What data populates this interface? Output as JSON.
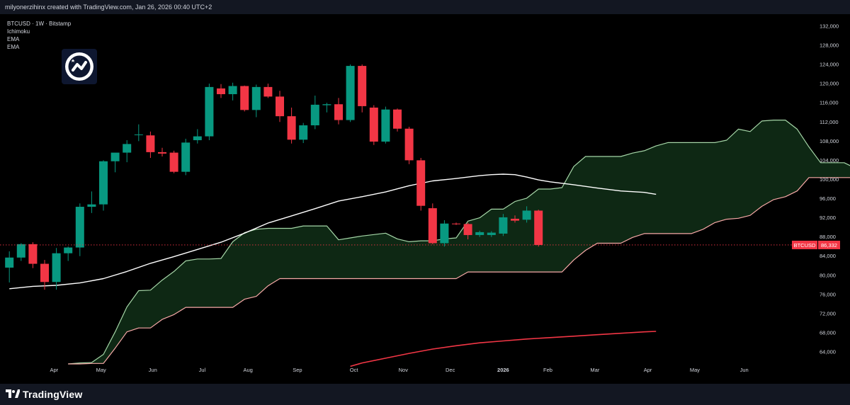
{
  "header": {
    "caption": "milyonerzihinx created with TradingView.com, Jan 26, 2026 00:40 UTC+2"
  },
  "legend": {
    "symbol": "BTCUSD · 1W · Bitstamp",
    "indicators": [
      "Ichimoku",
      "EMA",
      "EMA"
    ]
  },
  "footer": {
    "brand": "TradingView"
  },
  "colors": {
    "up": "#089981",
    "down": "#f23645",
    "cloud": "#0f2a15",
    "leading_a": "#a5d6a7",
    "leading_b": "#f7a9a7",
    "ema_fast": "#ffffff",
    "ema_slow": "#f23645",
    "background": "#000000"
  },
  "chart_data": {
    "type": "candlestick",
    "symbol": "BTCUSD",
    "timeframe": "1W",
    "exchange": "Bitstamp",
    "y_axis": {
      "ticks": [
        64000,
        68000,
        72000,
        76000,
        80000,
        84000,
        88000,
        92000,
        96000,
        100000,
        104000,
        108000,
        112000,
        116000,
        120000,
        124000,
        128000,
        132000
      ],
      "range": [
        61500,
        134500
      ]
    },
    "x_axis": {
      "labels": [
        "Apr",
        "May",
        "Jun",
        "Jul",
        "Aug",
        "Sep",
        "Oct",
        "Nov",
        "Dec",
        "2026",
        "Feb",
        "Mar",
        "Apr",
        "May",
        "Jun"
      ],
      "label_week_index": [
        3.8,
        7.8,
        12.2,
        16.4,
        20.3,
        24.5,
        29.3,
        33.5,
        37.5,
        42.0,
        45.8,
        49.8,
        54.3,
        58.3,
        62.5
      ]
    },
    "last_price": {
      "label": "BTCUSD",
      "value": "86,332"
    },
    "candles": [
      {
        "o": 81600,
        "h": 85000,
        "l": 78500,
        "c": 83700
      },
      {
        "o": 83700,
        "h": 86700,
        "l": 83000,
        "c": 86500
      },
      {
        "o": 86500,
        "h": 86900,
        "l": 81500,
        "c": 82400
      },
      {
        "o": 82400,
        "h": 83200,
        "l": 77000,
        "c": 78600
      },
      {
        "o": 78600,
        "h": 85700,
        "l": 77000,
        "c": 84600
      },
      {
        "o": 84600,
        "h": 86000,
        "l": 83000,
        "c": 85800
      },
      {
        "o": 85800,
        "h": 95000,
        "l": 84000,
        "c": 94300
      },
      {
        "o": 94300,
        "h": 97500,
        "l": 93000,
        "c": 94800
      },
      {
        "o": 94800,
        "h": 104000,
        "l": 93500,
        "c": 103800
      },
      {
        "o": 103800,
        "h": 105500,
        "l": 101500,
        "c": 105600
      },
      {
        "o": 105600,
        "h": 108200,
        "l": 103600,
        "c": 107400
      },
      {
        "o": 109300,
        "h": 111500,
        "l": 108000,
        "c": 109400
      },
      {
        "o": 109200,
        "h": 110000,
        "l": 104500,
        "c": 105700
      },
      {
        "o": 105700,
        "h": 106600,
        "l": 104800,
        "c": 105400
      },
      {
        "o": 105600,
        "h": 106000,
        "l": 101300,
        "c": 101600
      },
      {
        "o": 101600,
        "h": 108500,
        "l": 100900,
        "c": 107700
      },
      {
        "o": 108200,
        "h": 110500,
        "l": 107500,
        "c": 109000
      },
      {
        "o": 109000,
        "h": 120000,
        "l": 108200,
        "c": 119300
      },
      {
        "o": 119000,
        "h": 119900,
        "l": 117000,
        "c": 117800
      },
      {
        "o": 117800,
        "h": 120200,
        "l": 116500,
        "c": 119500
      },
      {
        "o": 119500,
        "h": 119600,
        "l": 114200,
        "c": 114500
      },
      {
        "o": 114500,
        "h": 119800,
        "l": 113000,
        "c": 119300
      },
      {
        "o": 119300,
        "h": 120000,
        "l": 117000,
        "c": 117300
      },
      {
        "o": 117300,
        "h": 118500,
        "l": 112000,
        "c": 113200
      },
      {
        "o": 113200,
        "h": 115000,
        "l": 107500,
        "c": 108300
      },
      {
        "o": 108300,
        "h": 111800,
        "l": 107600,
        "c": 111300
      },
      {
        "o": 111300,
        "h": 117500,
        "l": 110500,
        "c": 115600
      },
      {
        "o": 115500,
        "h": 116000,
        "l": 114000,
        "c": 115700
      },
      {
        "o": 115700,
        "h": 117000,
        "l": 111500,
        "c": 112400
      },
      {
        "o": 112400,
        "h": 124000,
        "l": 112000,
        "c": 123700
      },
      {
        "o": 123700,
        "h": 124000,
        "l": 114000,
        "c": 115300
      },
      {
        "o": 115000,
        "h": 115500,
        "l": 107200,
        "c": 107900
      },
      {
        "o": 107900,
        "h": 115200,
        "l": 107500,
        "c": 114600
      },
      {
        "o": 114600,
        "h": 114800,
        "l": 110000,
        "c": 110600
      },
      {
        "o": 110600,
        "h": 111000,
        "l": 103200,
        "c": 104000
      },
      {
        "o": 104000,
        "h": 104500,
        "l": 93500,
        "c": 94500
      },
      {
        "o": 94000,
        "h": 95000,
        "l": 86500,
        "c": 86700
      },
      {
        "o": 86700,
        "h": 91500,
        "l": 86000,
        "c": 90800
      },
      {
        "o": 90800,
        "h": 91000,
        "l": 90500,
        "c": 90700
      },
      {
        "o": 90700,
        "h": 91000,
        "l": 87500,
        "c": 88400
      },
      {
        "o": 88400,
        "h": 89300,
        "l": 88000,
        "c": 89000
      },
      {
        "o": 88400,
        "h": 89200,
        "l": 88000,
        "c": 88900
      },
      {
        "o": 88700,
        "h": 92800,
        "l": 88200,
        "c": 92100
      },
      {
        "o": 91800,
        "h": 92500,
        "l": 91000,
        "c": 91400
      },
      {
        "o": 91600,
        "h": 94400,
        "l": 91000,
        "c": 93500
      },
      {
        "o": 93500,
        "h": 93700,
        "l": 86000,
        "c": 86332
      }
    ],
    "ema_fast": [
      [
        0,
        77200
      ],
      [
        2,
        77700
      ],
      [
        4,
        77900
      ],
      [
        6,
        78400
      ],
      [
        8,
        79300
      ],
      [
        10,
        80800
      ],
      [
        12,
        82500
      ],
      [
        14,
        83900
      ],
      [
        16,
        85400
      ],
      [
        18,
        86900
      ],
      [
        20,
        88800
      ],
      [
        22,
        90900
      ],
      [
        24,
        92400
      ],
      [
        26,
        93900
      ],
      [
        28,
        95500
      ],
      [
        30,
        96400
      ],
      [
        32,
        97400
      ],
      [
        34,
        98700
      ],
      [
        36,
        99700
      ],
      [
        38,
        100200
      ],
      [
        39,
        100500
      ],
      [
        40,
        100800
      ],
      [
        41,
        101000
      ],
      [
        42,
        101100
      ],
      [
        43,
        101000
      ],
      [
        44,
        100500
      ],
      [
        45,
        99900
      ],
      [
        46,
        99500
      ],
      [
        48,
        98900
      ],
      [
        50,
        98200
      ],
      [
        52,
        97600
      ],
      [
        54,
        97300
      ],
      [
        55,
        96900
      ]
    ],
    "ema_slow": [
      [
        29,
        61000
      ],
      [
        30,
        61700
      ],
      [
        32,
        62700
      ],
      [
        34,
        63700
      ],
      [
        36,
        64600
      ],
      [
        38,
        65300
      ],
      [
        40,
        65900
      ],
      [
        42,
        66300
      ],
      [
        44,
        66700
      ],
      [
        46,
        67000
      ],
      [
        48,
        67300
      ],
      [
        50,
        67600
      ],
      [
        52,
        67900
      ],
      [
        54,
        68200
      ],
      [
        55,
        68300
      ]
    ],
    "leading_a": [
      [
        5,
        61500
      ],
      [
        6,
        61700
      ],
      [
        7,
        61800
      ],
      [
        8,
        63500
      ],
      [
        9,
        68200
      ],
      [
        10,
        73400
      ],
      [
        11,
        76800
      ],
      [
        12,
        76900
      ],
      [
        13,
        79000
      ],
      [
        14,
        80800
      ],
      [
        15,
        83000
      ],
      [
        16,
        83400
      ],
      [
        17,
        83400
      ],
      [
        18,
        83500
      ],
      [
        19,
        87000
      ],
      [
        20,
        88900
      ],
      [
        21,
        89600
      ],
      [
        22,
        89800
      ],
      [
        23,
        89800
      ],
      [
        24,
        89800
      ],
      [
        25,
        90300
      ],
      [
        26,
        90300
      ],
      [
        27,
        90300
      ],
      [
        28,
        87400
      ],
      [
        29,
        87800
      ],
      [
        30,
        88200
      ],
      [
        31,
        88500
      ],
      [
        32,
        88800
      ],
      [
        33,
        87600
      ],
      [
        34,
        87000
      ],
      [
        35,
        87200
      ],
      [
        36,
        87200
      ],
      [
        37,
        87600
      ],
      [
        38,
        87800
      ],
      [
        39,
        91300
      ],
      [
        40,
        92000
      ],
      [
        41,
        93800
      ],
      [
        42,
        93800
      ],
      [
        43,
        95400
      ],
      [
        44,
        96100
      ],
      [
        45,
        98000
      ],
      [
        46,
        98000
      ],
      [
        47,
        98300
      ],
      [
        48,
        102700
      ],
      [
        49,
        104800
      ],
      [
        50,
        104800
      ],
      [
        51,
        104800
      ],
      [
        52,
        104800
      ],
      [
        53,
        105500
      ],
      [
        54,
        106000
      ],
      [
        55,
        107000
      ],
      [
        56,
        107700
      ],
      [
        57,
        107700
      ],
      [
        58,
        107700
      ],
      [
        59,
        107700
      ],
      [
        60,
        107700
      ],
      [
        61,
        108200
      ],
      [
        62,
        110500
      ],
      [
        63,
        110000
      ],
      [
        64,
        112200
      ],
      [
        65,
        112400
      ],
      [
        66,
        112400
      ],
      [
        67,
        110500
      ],
      [
        68,
        106800
      ],
      [
        69,
        103500
      ],
      [
        70,
        103500
      ],
      [
        71,
        103500
      ],
      [
        72,
        102300
      ],
      [
        73,
        101000
      ],
      [
        74,
        101000
      ],
      [
        75,
        101000
      ],
      [
        76,
        100300
      ],
      [
        77,
        99300
      ]
    ],
    "leading_b": [
      [
        5,
        61500
      ],
      [
        6,
        61500
      ],
      [
        7,
        61600
      ],
      [
        8,
        61600
      ],
      [
        9,
        64800
      ],
      [
        10,
        68200
      ],
      [
        11,
        69000
      ],
      [
        12,
        69000
      ],
      [
        13,
        70800
      ],
      [
        14,
        71800
      ],
      [
        15,
        73300
      ],
      [
        16,
        73300
      ],
      [
        17,
        73300
      ],
      [
        18,
        73300
      ],
      [
        19,
        73300
      ],
      [
        20,
        75000
      ],
      [
        21,
        75600
      ],
      [
        22,
        77800
      ],
      [
        23,
        79300
      ],
      [
        24,
        79300
      ],
      [
        25,
        79300
      ],
      [
        26,
        79300
      ],
      [
        27,
        79300
      ],
      [
        28,
        79300
      ],
      [
        29,
        79300
      ],
      [
        30,
        79300
      ],
      [
        31,
        79300
      ],
      [
        32,
        79300
      ],
      [
        33,
        79300
      ],
      [
        34,
        79300
      ],
      [
        35,
        79300
      ],
      [
        36,
        79300
      ],
      [
        37,
        79300
      ],
      [
        38,
        79300
      ],
      [
        39,
        80700
      ],
      [
        40,
        80700
      ],
      [
        41,
        80700
      ],
      [
        42,
        80700
      ],
      [
        43,
        80700
      ],
      [
        44,
        80700
      ],
      [
        45,
        80700
      ],
      [
        46,
        80700
      ],
      [
        47,
        80700
      ],
      [
        48,
        83200
      ],
      [
        49,
        85200
      ],
      [
        50,
        86700
      ],
      [
        51,
        86700
      ],
      [
        52,
        86700
      ],
      [
        53,
        87900
      ],
      [
        54,
        88700
      ],
      [
        55,
        88700
      ],
      [
        56,
        88700
      ],
      [
        57,
        88700
      ],
      [
        58,
        88700
      ],
      [
        59,
        89600
      ],
      [
        60,
        91000
      ],
      [
        61,
        91700
      ],
      [
        62,
        91900
      ],
      [
        63,
        92500
      ],
      [
        64,
        94400
      ],
      [
        65,
        95800
      ],
      [
        66,
        96400
      ],
      [
        67,
        97600
      ],
      [
        68,
        100400
      ],
      [
        69,
        100400
      ],
      [
        70,
        100400
      ],
      [
        71,
        100400
      ],
      [
        72,
        100400
      ],
      [
        73,
        100400
      ],
      [
        74,
        100400
      ],
      [
        75,
        100400
      ],
      [
        76,
        100400
      ],
      [
        77,
        100400
      ]
    ]
  }
}
